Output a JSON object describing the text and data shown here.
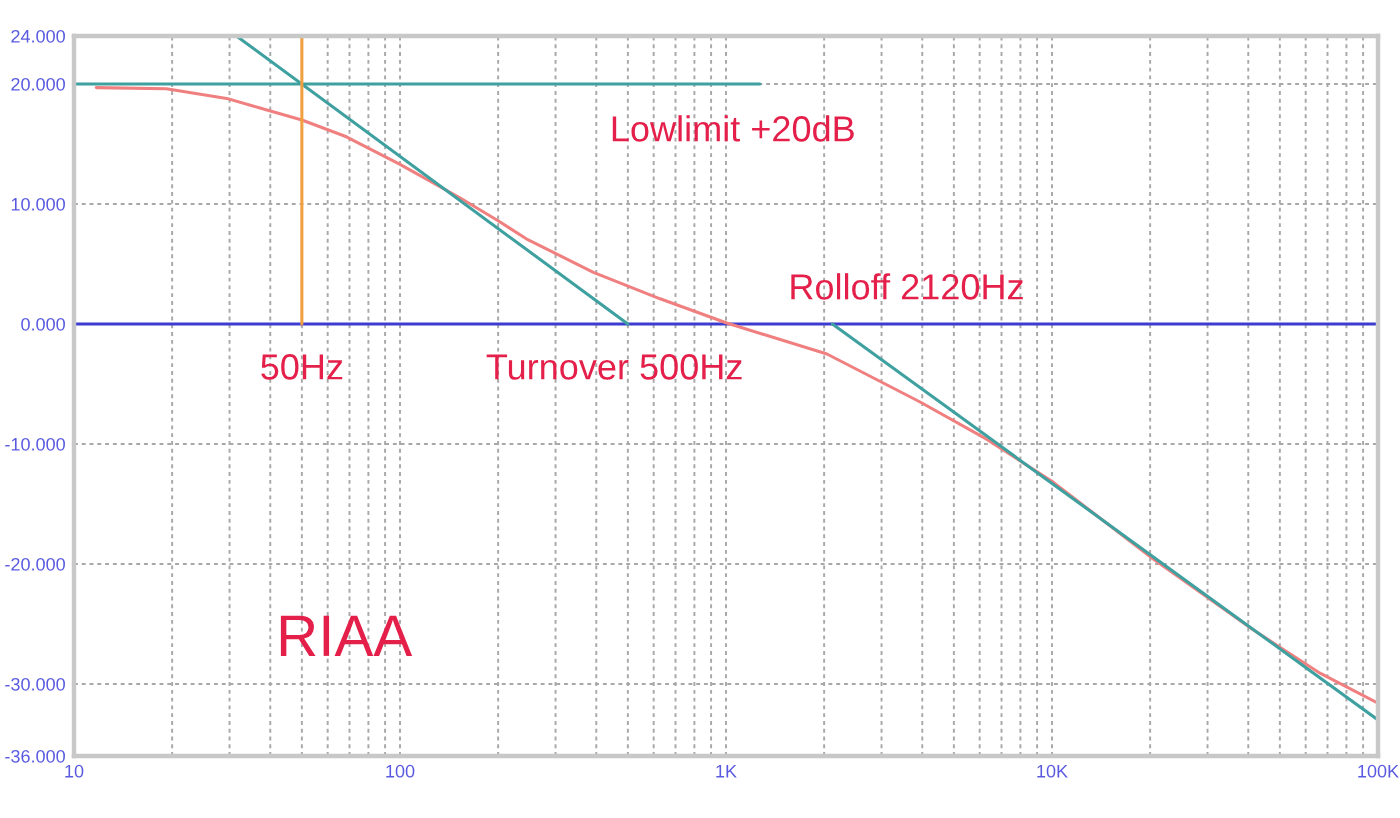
{
  "chart_data": {
    "type": "line",
    "log": "x",
    "grid": true,
    "xlim": [
      10,
      100000
    ],
    "xticks": [
      {
        "value": 10,
        "label": "10"
      },
      {
        "value": 20,
        "label": null
      },
      {
        "value": 30,
        "label": null
      },
      {
        "value": 40,
        "label": null
      },
      {
        "value": 50,
        "label": null
      },
      {
        "value": 60,
        "label": null
      },
      {
        "value": 70,
        "label": null
      },
      {
        "value": 80,
        "label": null
      },
      {
        "value": 90,
        "label": null
      },
      {
        "value": 100,
        "label": "100"
      },
      {
        "value": 200,
        "label": null
      },
      {
        "value": 300,
        "label": null
      },
      {
        "value": 400,
        "label": null
      },
      {
        "value": 500,
        "label": null
      },
      {
        "value": 600,
        "label": null
      },
      {
        "value": 700,
        "label": null
      },
      {
        "value": 800,
        "label": null
      },
      {
        "value": 900,
        "label": null
      },
      {
        "value": 1000,
        "label": "1K"
      },
      {
        "value": 2000,
        "label": null
      },
      {
        "value": 3000,
        "label": null
      },
      {
        "value": 4000,
        "label": null
      },
      {
        "value": 5000,
        "label": null
      },
      {
        "value": 6000,
        "label": null
      },
      {
        "value": 7000,
        "label": null
      },
      {
        "value": 8000,
        "label": null
      },
      {
        "value": 9000,
        "label": null
      },
      {
        "value": 10000,
        "label": "10K"
      },
      {
        "value": 20000,
        "label": null
      },
      {
        "value": 30000,
        "label": null
      },
      {
        "value": 40000,
        "label": null
      },
      {
        "value": 50000,
        "label": null
      },
      {
        "value": 60000,
        "label": null
      },
      {
        "value": 70000,
        "label": null
      },
      {
        "value": 80000,
        "label": null
      },
      {
        "value": 90000,
        "label": null
      },
      {
        "value": 100000,
        "label": "100K"
      }
    ],
    "ylim": [
      -36,
      24
    ],
    "yticks": [
      {
        "value": 24,
        "label": "24.000"
      },
      {
        "value": 20,
        "label": "20.000"
      },
      {
        "value": 10,
        "label": "10.000"
      },
      {
        "value": 0,
        "label": "0.000"
      },
      {
        "value": -10,
        "label": "-10.000"
      },
      {
        "value": -20,
        "label": "-20.000"
      },
      {
        "value": -30,
        "label": "-30.000"
      },
      {
        "value": -36,
        "label": "-36.000"
      }
    ],
    "series": [
      {
        "color": "#f08080",
        "x": [
          11.7,
          19.2,
          29.4,
          37.2,
          50,
          68.5,
          100,
          153,
          200,
          244,
          392,
          628,
          1000,
          2040,
          3940,
          6300,
          10100,
          20500,
          41500,
          66400,
          100000
        ],
        "values": [
          19.7,
          19.6,
          18.8,
          18.0,
          17.0,
          15.6,
          13.3,
          10.5,
          8.6,
          7.1,
          4.3,
          2.1,
          0.1,
          -2.5,
          -6.5,
          -9.6,
          -13.2,
          -19.6,
          -25.5,
          -29.1,
          -31.6
        ]
      },
      {
        "name": "Lowlimit +20dB",
        "color": "#3fa0a0",
        "x": [
          10,
          1270
        ],
        "values": [
          20,
          20
        ]
      },
      {
        "name": "Turnover 500Hz",
        "color": "#3fa0a0",
        "x": [
          31.5,
          500
        ],
        "values": [
          24,
          0
        ]
      },
      {
        "name": "Rolloff 2120Hz",
        "color": "#3fa0a0",
        "x": [
          2120,
          100000
        ],
        "values": [
          0,
          -33
        ]
      },
      {
        "name": "50Hz",
        "color": "#f0a040",
        "x": [
          50,
          50
        ],
        "values": [
          0,
          24
        ]
      }
    ],
    "ref_lines": [
      {
        "axis": "y",
        "value": 0,
        "color": "#3c3cd0"
      }
    ],
    "annotations": [
      "RIAA"
    ]
  }
}
